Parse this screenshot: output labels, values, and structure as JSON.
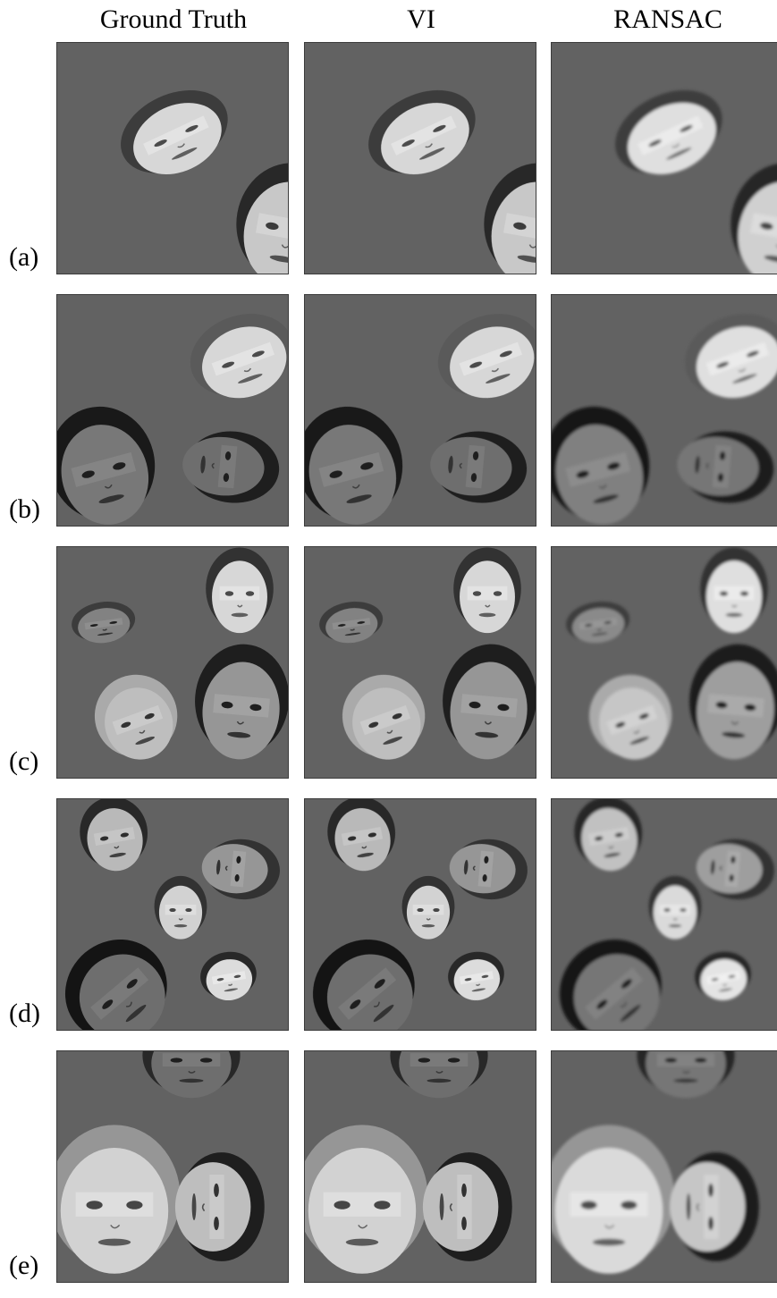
{
  "columns": [
    "Ground Truth",
    "VI",
    "RANSAC"
  ],
  "rows": [
    {
      "label": "(a)"
    },
    {
      "label": "(b)"
    },
    {
      "label": "(c)"
    },
    {
      "label": "(d)"
    },
    {
      "label": "(e)"
    }
  ],
  "colors": {
    "panel_background": "#626262",
    "figure_background": "#ffffff"
  }
}
